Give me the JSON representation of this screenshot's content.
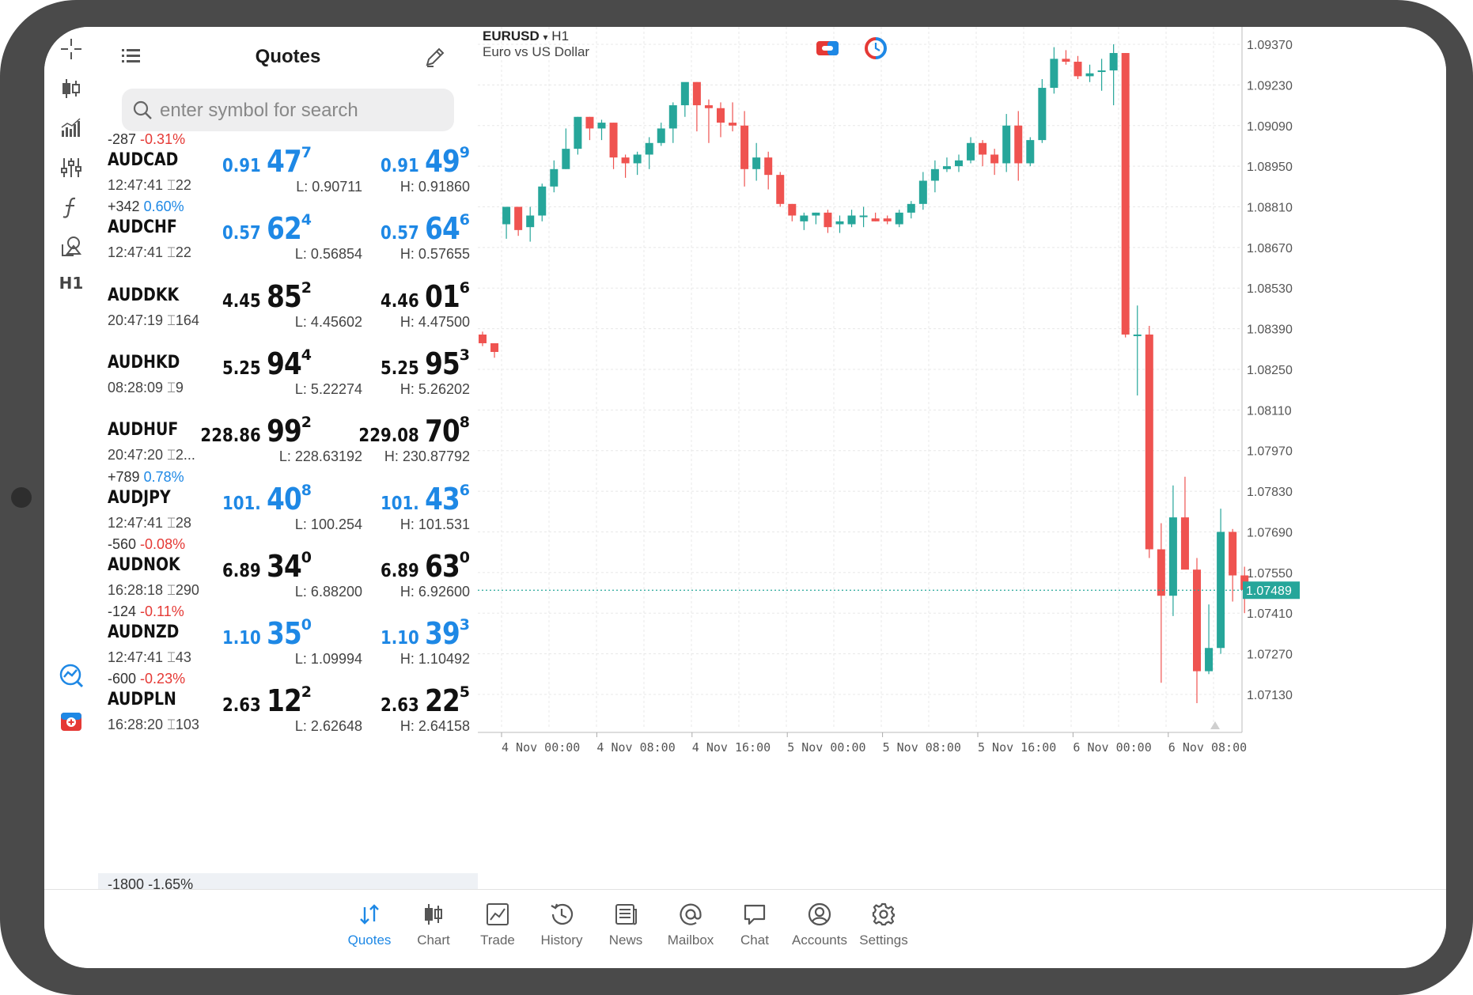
{
  "quotes_panel": {
    "title": "Quotes",
    "search_placeholder": "enter symbol for search",
    "rows": [
      {
        "change_pts": "-287",
        "change_pct": "-0.31%",
        "pct_color": "red",
        "symbol": "AUDCAD",
        "time": "12:47:41",
        "spread": "22",
        "bid_small": "0.91",
        "bid_big": "47",
        "bid_sup": "7",
        "ask_small": "0.91",
        "ask_big": "49",
        "ask_sup": "9",
        "low": "L: 0.90711",
        "high": "H: 0.91860",
        "price_color": "blue"
      },
      {
        "change_pts": "+342",
        "change_pct": "0.60%",
        "pct_color": "blue",
        "symbol": "AUDCHF",
        "time": "12:47:41",
        "spread": "22",
        "bid_small": "0.57",
        "bid_big": "62",
        "bid_sup": "4",
        "ask_small": "0.57",
        "ask_big": "64",
        "ask_sup": "6",
        "low": "L: 0.56854",
        "high": "H: 0.57655",
        "price_color": "blue"
      },
      {
        "change_pts": "",
        "change_pct": "",
        "pct_color": "red",
        "symbol": "AUDDKK",
        "time": "20:47:19",
        "spread": "164",
        "bid_small": "4.45",
        "bid_big": "85",
        "bid_sup": "2",
        "ask_small": "4.46",
        "ask_big": "01",
        "ask_sup": "6",
        "low": "L: 4.45602",
        "high": "H: 4.47500",
        "price_color": "black"
      },
      {
        "change_pts": "",
        "change_pct": "",
        "pct_color": "red",
        "symbol": "AUDHKD",
        "time": "08:28:09",
        "spread": "9",
        "bid_small": "5.25",
        "bid_big": "94",
        "bid_sup": "4",
        "ask_small": "5.25",
        "ask_big": "95",
        "ask_sup": "3",
        "low": "L: 5.22274",
        "high": "H: 5.26202",
        "price_color": "black"
      },
      {
        "change_pts": "",
        "change_pct": "",
        "pct_color": "red",
        "symbol": "AUDHUF",
        "time": "20:47:20",
        "spread": "2...",
        "bid_small": "228.86",
        "bid_big": "99",
        "bid_sup": "2",
        "ask_small": "229.08",
        "ask_big": "70",
        "ask_sup": "8",
        "low": "L: 228.63192",
        "high": "H: 230.87792",
        "price_color": "black"
      },
      {
        "change_pts": "+789",
        "change_pct": "0.78%",
        "pct_color": "blue",
        "symbol": "AUDJPY",
        "time": "12:47:41",
        "spread": "28",
        "bid_small": "101.",
        "bid_big": "40",
        "bid_sup": "8",
        "ask_small": "101.",
        "ask_big": "43",
        "ask_sup": "6",
        "low": "L: 100.254",
        "high": "H: 101.531",
        "price_color": "blue"
      },
      {
        "change_pts": "-560",
        "change_pct": "-0.08%",
        "pct_color": "red",
        "symbol": "AUDNOK",
        "time": "16:28:18",
        "spread": "290",
        "bid_small": "6.89",
        "bid_big": "34",
        "bid_sup": "0",
        "ask_small": "6.89",
        "ask_big": "63",
        "ask_sup": "0",
        "low": "L: 6.88200",
        "high": "H: 6.92600",
        "price_color": "black"
      },
      {
        "change_pts": "-124",
        "change_pct": "-0.11%",
        "pct_color": "red",
        "symbol": "AUDNZD",
        "time": "12:47:41",
        "spread": "43",
        "bid_small": "1.10",
        "bid_big": "35",
        "bid_sup": "0",
        "ask_small": "1.10",
        "ask_big": "39",
        "ask_sup": "3",
        "low": "L: 1.09994",
        "high": "H: 1.10492",
        "price_color": "blue"
      },
      {
        "change_pts": "-600",
        "change_pct": "-0.23%",
        "pct_color": "red",
        "symbol": "AUDPLN",
        "time": "16:28:20",
        "spread": "103",
        "bid_small": "2.63",
        "bid_big": "12",
        "bid_sup": "2",
        "ask_small": "2.63",
        "ask_big": "22",
        "ask_sup": "5",
        "low": "L: 2.62648",
        "high": "H: 2.64158",
        "price_color": "black"
      }
    ],
    "peek_row": {
      "change_pts": "-1800",
      "change_pct": "-1.65%"
    }
  },
  "toolbar": {
    "timeframe_label": "H1",
    "icons": [
      "crosshair-icon",
      "chart-type-icon",
      "volume-icon",
      "indicators-icon",
      "function-icon",
      "objects-icon"
    ]
  },
  "chart": {
    "symbol": "EURUSD",
    "timeframe": "H1",
    "description": "Euro vs US Dollar",
    "current_price": "1.07489",
    "colors": {
      "bull": "#26a69a",
      "bear": "#ef5350",
      "grid": "#e8e8e8",
      "price_line": "#26a69a"
    }
  },
  "chart_data": {
    "type": "candlestick",
    "symbol": "EURUSD",
    "timeframe": "H1",
    "title": "",
    "y_ticks": [
      "1.09370",
      "1.09230",
      "1.09090",
      "1.08950",
      "1.08810",
      "1.08670",
      "1.08530",
      "1.08390",
      "1.08250",
      "1.08110",
      "1.07970",
      "1.07830",
      "1.07690",
      "1.07550",
      "1.07410",
      "1.07270",
      "1.07130"
    ],
    "ylim": [
      1.0701,
      1.0943
    ],
    "x_ticks": [
      "4 Nov 00:00",
      "4 Nov 08:00",
      "4 Nov 16:00",
      "5 Nov 00:00",
      "5 Nov 08:00",
      "5 Nov 16:00",
      "6 Nov 00:00",
      "6 Nov 08:00"
    ],
    "current_price": 1.07489,
    "candles": [
      {
        "o": 1.0837,
        "h": 1.0838,
        "l": 1.0833,
        "c": 1.0834
      },
      {
        "o": 1.0834,
        "h": 1.0834,
        "l": 1.0829,
        "c": 1.0831
      },
      {
        "o": 1.0875,
        "h": 1.0881,
        "l": 1.087,
        "c": 1.0881
      },
      {
        "o": 1.0881,
        "h": 1.0881,
        "l": 1.0871,
        "c": 1.0873
      },
      {
        "o": 1.0874,
        "h": 1.0881,
        "l": 1.0869,
        "c": 1.0878
      },
      {
        "o": 1.0878,
        "h": 1.0889,
        "l": 1.0876,
        "c": 1.0888
      },
      {
        "o": 1.0888,
        "h": 1.0897,
        "l": 1.0886,
        "c": 1.0894
      },
      {
        "o": 1.0894,
        "h": 1.0908,
        "l": 1.0894,
        "c": 1.0901
      },
      {
        "o": 1.0901,
        "h": 1.0912,
        "l": 1.0899,
        "c": 1.0912
      },
      {
        "o": 1.0912,
        "h": 1.0912,
        "l": 1.0904,
        "c": 1.0908
      },
      {
        "o": 1.0908,
        "h": 1.0911,
        "l": 1.0904,
        "c": 1.091
      },
      {
        "o": 1.091,
        "h": 1.091,
        "l": 1.0894,
        "c": 1.0898
      },
      {
        "o": 1.0898,
        "h": 1.0899,
        "l": 1.0891,
        "c": 1.0896
      },
      {
        "o": 1.0896,
        "h": 1.09,
        "l": 1.0892,
        "c": 1.0899
      },
      {
        "o": 1.0899,
        "h": 1.0905,
        "l": 1.0894,
        "c": 1.0903
      },
      {
        "o": 1.0903,
        "h": 1.091,
        "l": 1.0902,
        "c": 1.0908
      },
      {
        "o": 1.0908,
        "h": 1.0917,
        "l": 1.0903,
        "c": 1.0916
      },
      {
        "o": 1.0916,
        "h": 1.0923,
        "l": 1.0912,
        "c": 1.0924
      },
      {
        "o": 1.0924,
        "h": 1.0924,
        "l": 1.0907,
        "c": 1.0916
      },
      {
        "o": 1.0916,
        "h": 1.0918,
        "l": 1.0903,
        "c": 1.0915
      },
      {
        "o": 1.0915,
        "h": 1.0917,
        "l": 1.0905,
        "c": 1.091
      },
      {
        "o": 1.091,
        "h": 1.0917,
        "l": 1.0907,
        "c": 1.0909
      },
      {
        "o": 1.0909,
        "h": 1.0914,
        "l": 1.0888,
        "c": 1.0894
      },
      {
        "o": 1.0894,
        "h": 1.0903,
        "l": 1.089,
        "c": 1.0898
      },
      {
        "o": 1.0898,
        "h": 1.09,
        "l": 1.0887,
        "c": 1.0892
      },
      {
        "o": 1.0892,
        "h": 1.0893,
        "l": 1.0881,
        "c": 1.0882
      },
      {
        "o": 1.0882,
        "h": 1.0882,
        "l": 1.0876,
        "c": 1.0878
      },
      {
        "o": 1.0876,
        "h": 1.0879,
        "l": 1.0873,
        "c": 1.0878
      },
      {
        "o": 1.0878,
        "h": 1.0879,
        "l": 1.0875,
        "c": 1.0879
      },
      {
        "o": 1.0879,
        "h": 1.088,
        "l": 1.0872,
        "c": 1.0874
      },
      {
        "o": 1.0875,
        "h": 1.0878,
        "l": 1.0872,
        "c": 1.0876
      },
      {
        "o": 1.0875,
        "h": 1.088,
        "l": 1.0874,
        "c": 1.0878
      },
      {
        "o": 1.0878,
        "h": 1.0881,
        "l": 1.0874,
        "c": 1.0878
      },
      {
        "o": 1.0877,
        "h": 1.0879,
        "l": 1.0876,
        "c": 1.0876
      },
      {
        "o": 1.0877,
        "h": 1.0878,
        "l": 1.0875,
        "c": 1.0876
      },
      {
        "o": 1.0875,
        "h": 1.088,
        "l": 1.0874,
        "c": 1.0879
      },
      {
        "o": 1.0879,
        "h": 1.0883,
        "l": 1.0877,
        "c": 1.0882
      },
      {
        "o": 1.0882,
        "h": 1.0893,
        "l": 1.088,
        "c": 1.089
      },
      {
        "o": 1.089,
        "h": 1.0897,
        "l": 1.0886,
        "c": 1.0894
      },
      {
        "o": 1.0894,
        "h": 1.0898,
        "l": 1.0893,
        "c": 1.0895
      },
      {
        "o": 1.0895,
        "h": 1.0899,
        "l": 1.0893,
        "c": 1.0897
      },
      {
        "o": 1.0897,
        "h": 1.0905,
        "l": 1.0896,
        "c": 1.0903
      },
      {
        "o": 1.0903,
        "h": 1.0904,
        "l": 1.0895,
        "c": 1.0899
      },
      {
        "o": 1.0899,
        "h": 1.0901,
        "l": 1.0892,
        "c": 1.0896
      },
      {
        "o": 1.0896,
        "h": 1.0913,
        "l": 1.0893,
        "c": 1.0909
      },
      {
        "o": 1.0909,
        "h": 1.0914,
        "l": 1.089,
        "c": 1.0896
      },
      {
        "o": 1.0896,
        "h": 1.0905,
        "l": 1.0895,
        "c": 1.0904
      },
      {
        "o": 1.0904,
        "h": 1.0925,
        "l": 1.0903,
        "c": 1.0922
      },
      {
        "o": 1.0922,
        "h": 1.0936,
        "l": 1.092,
        "c": 1.0932
      },
      {
        "o": 1.0932,
        "h": 1.0935,
        "l": 1.093,
        "c": 1.0931
      },
      {
        "o": 1.0931,
        "h": 1.0933,
        "l": 1.0925,
        "c": 1.0926
      },
      {
        "o": 1.0926,
        "h": 1.093,
        "l": 1.0924,
        "c": 1.0927
      },
      {
        "o": 1.0928,
        "h": 1.0932,
        "l": 1.0921,
        "c": 1.0928
      },
      {
        "o": 1.0928,
        "h": 1.0937,
        "l": 1.0916,
        "c": 1.0934
      },
      {
        "o": 1.0934,
        "h": 1.0934,
        "l": 1.0836,
        "c": 1.0837
      },
      {
        "o": 1.0837,
        "h": 1.0847,
        "l": 1.0816,
        "c": 1.0837
      },
      {
        "o": 1.0837,
        "h": 1.084,
        "l": 1.076,
        "c": 1.0763
      },
      {
        "o": 1.0763,
        "h": 1.0772,
        "l": 1.0717,
        "c": 1.0747
      },
      {
        "o": 1.0747,
        "h": 1.0785,
        "l": 1.074,
        "c": 1.0774
      },
      {
        "o": 1.0774,
        "h": 1.0788,
        "l": 1.0757,
        "c": 1.0756
      },
      {
        "o": 1.0756,
        "h": 1.076,
        "l": 1.071,
        "c": 1.0721
      },
      {
        "o": 1.0721,
        "h": 1.0744,
        "l": 1.072,
        "c": 1.0729
      },
      {
        "o": 1.0729,
        "h": 1.0777,
        "l": 1.0727,
        "c": 1.0769
      },
      {
        "o": 1.0769,
        "h": 1.077,
        "l": 1.0745,
        "c": 1.0754
      },
      {
        "o": 1.0754,
        "h": 1.0757,
        "l": 1.0741,
        "c": 1.0749
      }
    ]
  },
  "tabbar": {
    "tabs": [
      {
        "label": "Quotes",
        "active": true
      },
      {
        "label": "Chart",
        "active": false
      },
      {
        "label": "Trade",
        "active": false
      },
      {
        "label": "History",
        "active": false
      },
      {
        "label": "News",
        "active": false
      },
      {
        "label": "Mailbox",
        "active": false
      },
      {
        "label": "Chat",
        "active": false
      },
      {
        "label": "Accounts",
        "active": false
      },
      {
        "label": "Settings",
        "active": false
      }
    ]
  }
}
